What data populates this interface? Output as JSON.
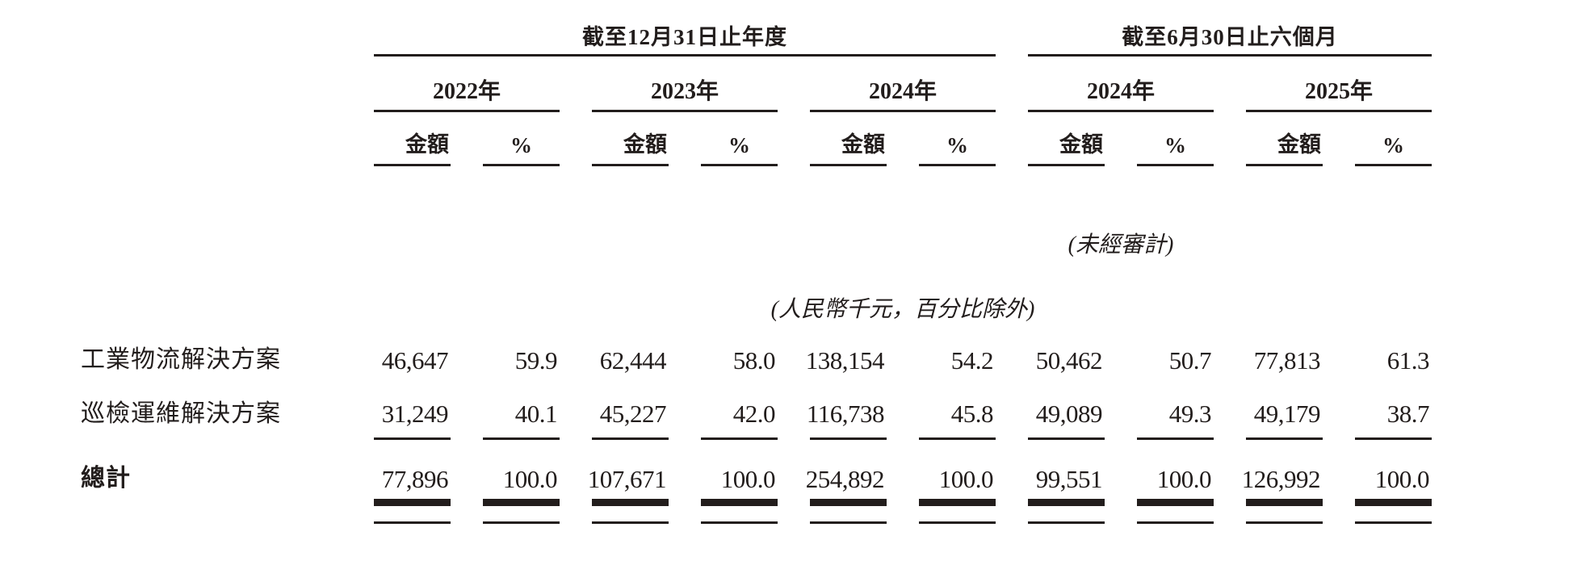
{
  "table": {
    "text_color": "#221d1c",
    "period_groups": [
      {
        "label": "截至12月31日止年度"
      },
      {
        "label": "截至6月30日止六個月"
      }
    ],
    "year_headers": [
      "2022年",
      "2023年",
      "2024年",
      "2024年",
      "2025年"
    ],
    "amount_label": "金額",
    "percent_label": "%",
    "unaudited_note": "(未經審計)",
    "unit_note": "(人民幣千元，百分比除外)",
    "rows": [
      {
        "label": "工業物流解決方案",
        "values": [
          "46,647",
          "59.9",
          "62,444",
          "58.0",
          "138,154",
          "54.2",
          "50,462",
          "50.7",
          "77,813",
          "61.3"
        ]
      },
      {
        "label": "巡檢運維解決方案",
        "values": [
          "31,249",
          "40.1",
          "45,227",
          "42.0",
          "116,738",
          "45.8",
          "49,089",
          "49.3",
          "49,179",
          "38.7"
        ]
      }
    ],
    "total_row": {
      "label": "總計",
      "values": [
        "77,896",
        "100.0",
        "107,671",
        "100.0",
        "254,892",
        "100.0",
        "99,551",
        "100.0",
        "126,992",
        "100.0"
      ]
    }
  }
}
